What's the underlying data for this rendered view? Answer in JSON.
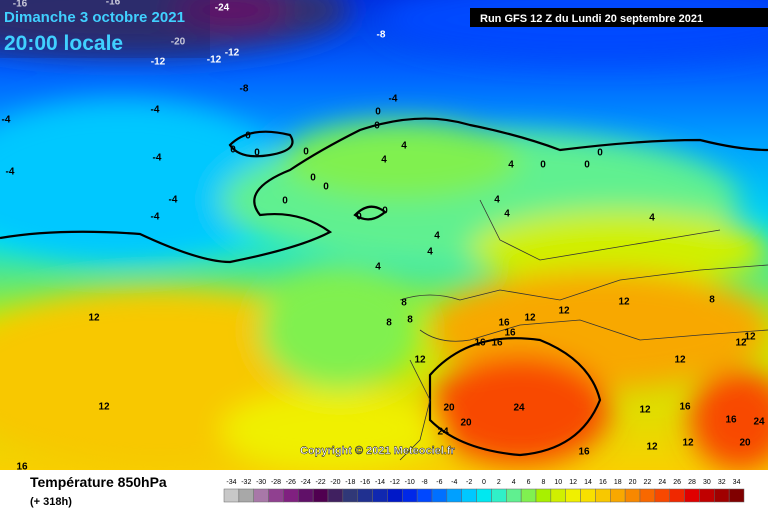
{
  "header": {
    "date": "Dimanche 3 octobre 2021",
    "time": "20:00 locale",
    "run": "Run GFS 12 Z du Lundi 20 septembre 2021"
  },
  "copyright": "Copyright © 2021 Meteociel.fr",
  "legend": {
    "title": "Température 850hPa",
    "subtitle": "(+ 318h)",
    "ticks": [
      -34,
      -32,
      -30,
      -28,
      -26,
      -24,
      -22,
      -20,
      -18,
      -16,
      -14,
      -12,
      -10,
      -8,
      -6,
      -4,
      -2,
      0,
      2,
      4,
      6,
      8,
      10,
      12,
      14,
      16,
      18,
      20,
      22,
      24,
      26,
      28,
      30,
      32,
      34
    ],
    "colors": [
      "#c8c8c8",
      "#a8a8a8",
      "#a878a8",
      "#904090",
      "#802080",
      "#601068",
      "#500050",
      "#402060",
      "#303878",
      "#203090",
      "#1028b0",
      "#0018c8",
      "#0028e8",
      "#0048ff",
      "#0070ff",
      "#00a0ff",
      "#00c8ff",
      "#00e8f0",
      "#30f0c8",
      "#60f090",
      "#80f050",
      "#a8f000",
      "#d0f000",
      "#f0f000",
      "#f8e000",
      "#f8c800",
      "#f8a800",
      "#f88800",
      "#f86800",
      "#f84800",
      "#f02800",
      "#e00000",
      "#c00000",
      "#a00000",
      "#800000"
    ]
  },
  "map": {
    "labels": [
      "-16",
      "-16",
      "-24",
      "-8",
      "-20",
      "-12",
      "-12",
      "-12",
      "-8",
      "-4",
      "-4",
      "-4",
      "-4",
      "-4",
      "-4",
      "-4",
      "0",
      "0",
      "0",
      "0",
      "0",
      "0",
      "0",
      "0",
      "0",
      "0",
      "0",
      "4",
      "4",
      "4",
      "0",
      "0",
      "0",
      "4",
      "4",
      "4",
      "4",
      "4",
      "4",
      "8",
      "8",
      "8",
      "8",
      "12",
      "12",
      "12",
      "12",
      "12",
      "16",
      "16",
      "16",
      "16",
      "12",
      "12",
      "12",
      "12",
      "20",
      "20",
      "24",
      "24",
      "16",
      "16",
      "12",
      "12",
      "12",
      "16",
      "20",
      "24",
      "16"
    ]
  }
}
